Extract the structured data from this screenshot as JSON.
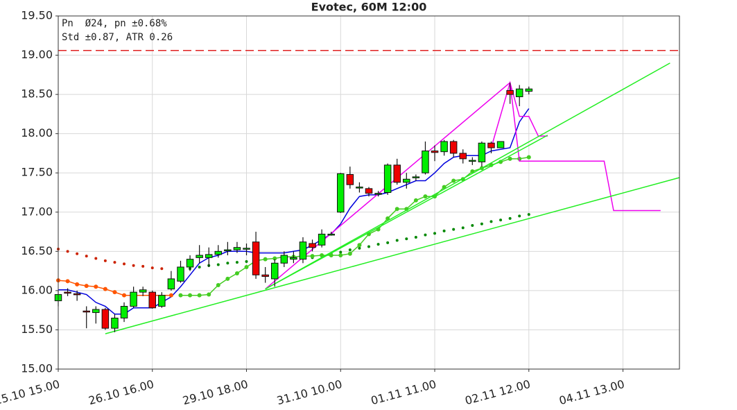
{
  "chart_data": {
    "type": "candlestick",
    "title": "Evotec, 60M 12:00",
    "annotations": [
      "Pn  Ø24, pn ±0.68%",
      "Std ±0.87, ATR 0.26"
    ],
    "xlim": [
      0,
      66
    ],
    "ylim": [
      15,
      19.5
    ],
    "xticks": [
      {
        "value": 0,
        "label": "25.10 15.00"
      },
      {
        "value": 10,
        "label": "26.10 16.00"
      },
      {
        "value": 20,
        "label": "29.10 18.00"
      },
      {
        "value": 30,
        "label": "31.10 10.00"
      },
      {
        "value": 40,
        "label": "01.11 11.00"
      },
      {
        "value": 50,
        "label": "02.11 12.00"
      },
      {
        "value": 60,
        "label": "04.11 13.00"
      }
    ],
    "yticks": [
      {
        "value": 15,
        "label": "15.00"
      },
      {
        "value": 15.5,
        "label": "15.50"
      },
      {
        "value": 16,
        "label": "16.00"
      },
      {
        "value": 16.5,
        "label": "16.50"
      },
      {
        "value": 17,
        "label": "17.00"
      },
      {
        "value": 17.5,
        "label": "17.50"
      },
      {
        "value": 18,
        "label": "18.00"
      },
      {
        "value": 18.5,
        "label": "18.50"
      },
      {
        "value": 19,
        "label": "19.00"
      },
      {
        "value": 19.5,
        "label": "19.50"
      }
    ],
    "grid": true,
    "up_color": "#00ee00",
    "down_color": "#ee0000",
    "x": [
      0,
      1,
      2,
      3,
      4,
      5,
      6,
      7,
      8,
      9,
      10,
      11,
      12,
      13,
      14,
      15,
      16,
      17,
      18,
      19,
      20,
      21,
      22,
      23,
      24,
      25,
      26,
      27,
      28,
      29,
      30,
      31,
      32,
      33,
      34,
      35,
      36,
      37,
      38,
      39,
      40,
      41,
      42,
      43,
      44,
      45,
      46,
      47,
      48,
      49,
      50
    ],
    "open": [
      15.87,
      15.98,
      15.96,
      15.74,
      15.72,
      15.76,
      15.52,
      15.65,
      15.8,
      15.98,
      15.98,
      15.8,
      16.02,
      16.12,
      16.3,
      16.42,
      16.42,
      16.46,
      16.52,
      16.52,
      16.53,
      16.62,
      16.2,
      16.15,
      16.35,
      16.4,
      16.4,
      16.6,
      16.58,
      16.72,
      17.0,
      17.48,
      17.32,
      17.3,
      17.23,
      17.25,
      17.6,
      17.38,
      17.45,
      17.5,
      17.78,
      17.77,
      17.9,
      17.75,
      17.66,
      17.64,
      17.88,
      17.82,
      18.55,
      18.47,
      18.54
    ],
    "high": [
      16.0,
      16.03,
      16.0,
      15.8,
      15.8,
      15.78,
      15.7,
      15.85,
      16.05,
      16.05,
      16.0,
      15.98,
      16.25,
      16.38,
      16.45,
      16.58,
      16.55,
      16.58,
      16.62,
      16.62,
      16.6,
      16.75,
      16.3,
      16.4,
      16.5,
      16.5,
      16.68,
      16.65,
      16.78,
      16.75,
      17.5,
      17.58,
      17.38,
      17.32,
      17.27,
      17.62,
      17.68,
      17.5,
      17.48,
      17.9,
      17.85,
      17.92,
      17.92,
      17.8,
      17.7,
      17.9,
      17.9,
      17.9,
      18.65,
      18.62,
      18.6
    ],
    "low": [
      15.8,
      15.93,
      15.87,
      15.52,
      15.58,
      15.5,
      15.47,
      15.6,
      15.78,
      15.93,
      15.77,
      15.78,
      16.0,
      16.1,
      16.25,
      16.35,
      16.3,
      16.42,
      16.45,
      16.48,
      16.45,
      16.15,
      16.1,
      16.05,
      16.3,
      16.35,
      16.35,
      16.5,
      16.55,
      16.7,
      16.99,
      17.3,
      17.25,
      17.2,
      17.2,
      17.22,
      17.35,
      17.3,
      17.4,
      17.48,
      17.65,
      17.72,
      17.7,
      17.62,
      17.6,
      17.58,
      17.75,
      17.82,
      18.38,
      18.35,
      18.5
    ],
    "close": [
      15.95,
      15.97,
      15.95,
      15.73,
      15.76,
      15.52,
      15.65,
      15.8,
      15.98,
      16.01,
      15.78,
      15.94,
      16.15,
      16.3,
      16.4,
      16.45,
      16.46,
      16.5,
      16.52,
      16.55,
      16.54,
      16.2,
      16.18,
      16.35,
      16.45,
      16.42,
      16.62,
      16.55,
      16.72,
      16.72,
      17.49,
      17.35,
      17.32,
      17.24,
      17.24,
      17.6,
      17.38,
      17.42,
      17.45,
      17.78,
      17.76,
      17.9,
      17.75,
      17.68,
      17.66,
      17.88,
      17.82,
      17.9,
      18.5,
      18.57,
      18.57
    ],
    "hlines": [
      {
        "value": 19.06,
        "color": "#e02020",
        "style": "dashed"
      }
    ],
    "lines": [
      {
        "color": "#0000dd",
        "style": "line",
        "x": [
          0,
          1,
          2,
          3,
          4,
          5,
          6,
          7,
          8,
          9,
          10,
          11,
          12,
          13,
          14,
          15,
          16,
          17,
          18,
          19,
          20,
          21,
          22,
          23,
          24,
          25,
          26,
          27,
          28,
          29,
          30,
          31,
          32,
          33,
          34,
          35,
          36,
          37,
          38,
          39,
          40,
          41,
          42,
          43,
          44,
          45,
          46,
          47,
          48,
          49,
          50
        ],
        "values": [
          16.01,
          16.01,
          15.98,
          15.95,
          15.85,
          15.8,
          15.7,
          15.7,
          15.78,
          15.78,
          15.78,
          15.85,
          15.92,
          16.05,
          16.2,
          16.35,
          16.42,
          16.45,
          16.5,
          16.5,
          16.5,
          16.48,
          16.48,
          16.48,
          16.48,
          16.5,
          16.52,
          16.58,
          16.65,
          16.72,
          16.85,
          17.05,
          17.2,
          17.22,
          17.22,
          17.25,
          17.3,
          17.35,
          17.4,
          17.4,
          17.5,
          17.62,
          17.7,
          17.72,
          17.72,
          17.72,
          17.78,
          17.8,
          17.82,
          18.15,
          18.32
        ]
      },
      {
        "color": "#cc2200",
        "style": "dots",
        "x": [
          0,
          1,
          2,
          3,
          4,
          5,
          6,
          7,
          8,
          9,
          10,
          11
        ],
        "values": [
          16.53,
          16.5,
          16.47,
          16.44,
          16.41,
          16.38,
          16.36,
          16.34,
          16.32,
          16.31,
          16.29,
          16.28
        ]
      },
      {
        "color": "#ff5500",
        "style": "line-dots",
        "x": [
          0,
          1,
          2,
          3,
          4,
          5,
          6,
          7,
          12
        ],
        "values": [
          16.13,
          16.12,
          16.08,
          16.06,
          16.05,
          16.02,
          15.98,
          15.94,
          15.94
        ]
      },
      {
        "color": "#008800",
        "style": "dots",
        "x": [
          14,
          15,
          16,
          17,
          18,
          19,
          20,
          27,
          28,
          29,
          30,
          31,
          32,
          33,
          34,
          35,
          36,
          37,
          38,
          39,
          40,
          41,
          42,
          43,
          44,
          45,
          46,
          47,
          48,
          49,
          50
        ],
        "values": [
          16.28,
          16.3,
          16.32,
          16.33,
          16.35,
          16.36,
          16.37,
          16.42,
          16.44,
          16.47,
          16.49,
          16.52,
          16.54,
          16.56,
          16.59,
          16.61,
          16.64,
          16.66,
          16.68,
          16.71,
          16.73,
          16.76,
          16.78,
          16.8,
          16.83,
          16.85,
          16.88,
          16.9,
          16.92,
          16.95,
          16.97
        ]
      },
      {
        "color": "#44cc22",
        "style": "line-dots",
        "x": [
          13,
          14,
          15,
          16,
          17,
          18,
          19,
          20,
          21,
          22,
          23,
          24,
          25,
          26,
          27,
          28,
          29,
          30,
          31,
          32,
          33,
          34,
          35,
          36,
          37,
          38,
          39,
          40,
          41,
          42,
          43,
          44,
          45,
          46,
          47,
          48,
          49,
          50
        ],
        "values": [
          15.94,
          15.94,
          15.94,
          15.95,
          16.07,
          16.15,
          16.22,
          16.3,
          16.38,
          16.4,
          16.41,
          16.43,
          16.43,
          16.44,
          16.44,
          16.45,
          16.45,
          16.45,
          16.47,
          16.58,
          16.72,
          16.78,
          16.92,
          17.04,
          17.04,
          17.15,
          17.2,
          17.2,
          17.32,
          17.4,
          17.42,
          17.52,
          17.56,
          17.6,
          17.64,
          17.68,
          17.68,
          17.7
        ]
      },
      {
        "color": "#ee00ee",
        "style": "line",
        "x": [
          22,
          48,
          49,
          58,
          59,
          64
        ],
        "values": [
          16.02,
          18.65,
          17.65,
          17.65,
          17.02,
          17.02
        ]
      },
      {
        "color": "#ee00ee",
        "style": "line",
        "x": [
          46,
          48,
          49,
          50,
          51,
          52
        ],
        "values": [
          17.82,
          18.65,
          18.22,
          18.22,
          17.97,
          17.97
        ]
      },
      {
        "color": "#22ee22",
        "style": "line",
        "x": [
          5,
          66
        ],
        "values": [
          15.45,
          17.44
        ]
      },
      {
        "color": "#22ee22",
        "style": "line",
        "x": [
          22,
          65
        ],
        "values": [
          16.02,
          18.9
        ]
      },
      {
        "color": "#22ee22",
        "style": "line",
        "x": [
          22,
          52
        ],
        "values": [
          16.02,
          17.98
        ]
      }
    ]
  }
}
